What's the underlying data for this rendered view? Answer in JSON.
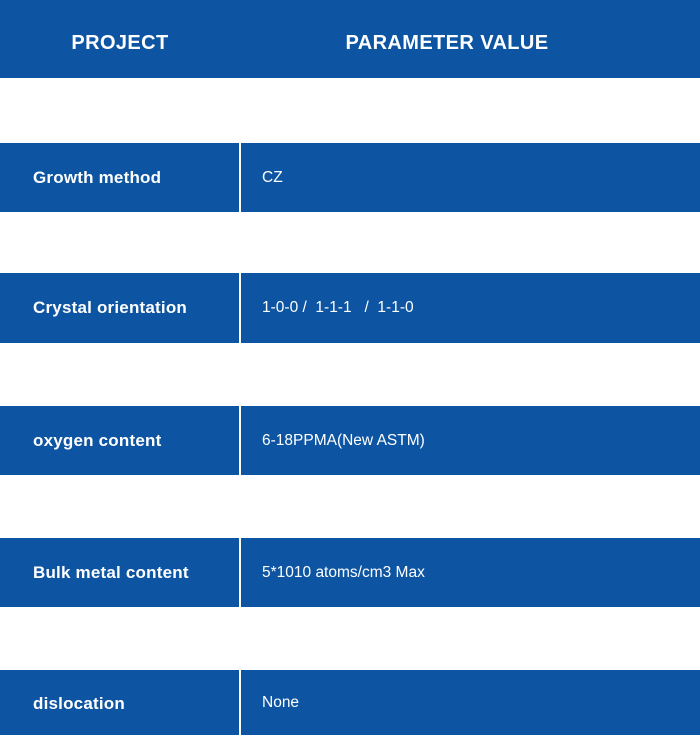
{
  "header": {
    "col_project": "PROJECT",
    "col_parameter_value": "PARAMETER VALUE"
  },
  "colors": {
    "primary_blue": "#0d55a2",
    "text_white": "#ffffff",
    "background": "#ffffff"
  },
  "table": {
    "rows": [
      {
        "project": "Growth method",
        "value": "CZ"
      },
      {
        "project": "Crystal orientation",
        "value": "1-0-0 /  1-1-1   /  1-1-0"
      },
      {
        "project": "oxygen content",
        "value": "6-18PPMA(New ASTM)"
      },
      {
        "project": "Bulk metal content",
        "value": "5*1010 atoms/cm3 Max"
      },
      {
        "project": "dislocation",
        "value": "None"
      }
    ]
  }
}
